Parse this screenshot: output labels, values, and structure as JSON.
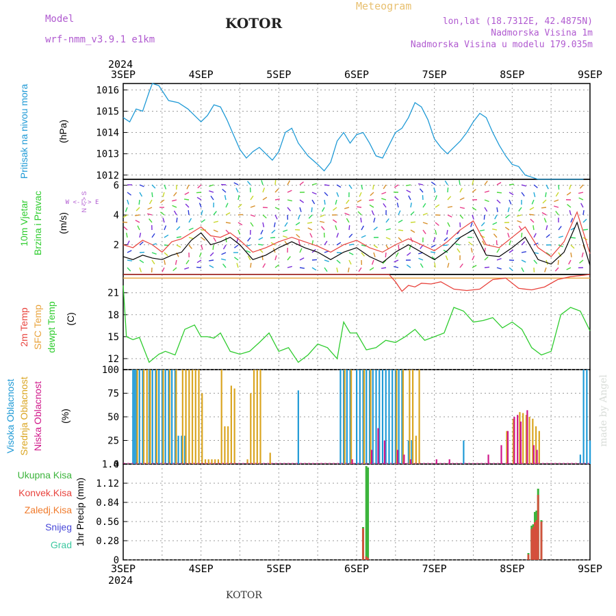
{
  "header": {
    "model_label": "Model",
    "model_name": "wrf-nmm_v3.9.1 e1km",
    "title": "KOTOR",
    "meteogram": "Meteogram",
    "lonlat": "lon,lat (18.7312E, 42.4875N)",
    "elevation": "Nadmorska Visina 1m",
    "model_elevation": "Nadmorska Visina u modelu 179.035m"
  },
  "footer": {
    "station": "KOTOR",
    "credit": "made by Angel"
  },
  "colors": {
    "pressure": "#1f9ad6",
    "temp2m": "#e8423c",
    "sfc_temp": "#e8a23a",
    "dewpt": "#2ecc2e",
    "high_cloud": "#1f9ad6",
    "mid_cloud": "#daa520",
    "low_cloud": "#d0178a",
    "total_precip": "#3cb43c",
    "conv_precip": "#e8423c",
    "freezing_precip": "#f07a2a",
    "snow": "#4646d8",
    "hail": "#3cc8a0"
  },
  "chart_data": [
    {
      "type": "line",
      "panel": "pressure",
      "ylabel_left": "Pritisak na nivou mora",
      "unit": "(hPa)",
      "year_top": "2024",
      "x_ticks": [
        "3SEP",
        "4SEP",
        "5SEP",
        "6SEP",
        "7SEP",
        "8SEP",
        "9SEP"
      ],
      "xlim": [
        "2024-09-03T00",
        "2024-09-09T00"
      ],
      "ylim": [
        1011.8,
        1016.3
      ],
      "y_ticks": [
        "1012",
        "1013",
        "1014",
        "1015",
        "1016"
      ],
      "series": [
        {
          "name": "",
          "x_hours": [
            0,
            2,
            4,
            6,
            8,
            9,
            11,
            14,
            17,
            20,
            22,
            24,
            26,
            28,
            30,
            32,
            34,
            36,
            38,
            40,
            42,
            44,
            46,
            48,
            50,
            52,
            54,
            57,
            60,
            62,
            64,
            66,
            68,
            70,
            72,
            74,
            76,
            78,
            80,
            82,
            84,
            86,
            88,
            90,
            92,
            94,
            96,
            98,
            100,
            102,
            104,
            106,
            108,
            110,
            112,
            114,
            116,
            118,
            120,
            122,
            124,
            126,
            128,
            130,
            132,
            134,
            136,
            138,
            140,
            142
          ],
          "values": [
            1014.7,
            1014.5,
            1015.1,
            1015.0,
            1015.9,
            1016.3,
            1016.2,
            1015.5,
            1015.4,
            1015.1,
            1014.8,
            1014.5,
            1014.8,
            1015.3,
            1015.2,
            1014.6,
            1013.9,
            1013.2,
            1012.8,
            1013.1,
            1013.3,
            1013.0,
            1012.7,
            1013.1,
            1014.0,
            1014.2,
            1013.5,
            1012.9,
            1012.5,
            1012.2,
            1012.6,
            1013.6,
            1014.0,
            1013.5,
            1013.9,
            1014.0,
            1013.5,
            1012.9,
            1012.8,
            1013.4,
            1014.0,
            1014.2,
            1014.7,
            1015.4,
            1015.2,
            1014.6,
            1013.7,
            1013.3,
            1013.0,
            1013.3,
            1013.6,
            1014.0,
            1014.5,
            1014.9,
            1014.7,
            1014.0,
            1013.4,
            1012.9,
            1012.5,
            1012.4,
            1012.0,
            1011.9,
            1011.8,
            1011.8,
            1011.8,
            1011.8,
            1011.8,
            1011.8,
            1011.8,
            1011.8
          ]
        }
      ]
    },
    {
      "type": "line",
      "panel": "wind",
      "ylabel_left": "10m Vjetar",
      "ylabel_left2": "Brzina i Pravac",
      "unit": "(m/s)",
      "compass_ns": "N <-> S",
      "compass_we": "W <-|-> E",
      "ylim": [
        0,
        6.4
      ],
      "y_ticks": [
        "2",
        "4",
        "6"
      ],
      "series": [
        {
          "name": "",
          "x_hours": [
            0,
            3,
            6,
            9,
            12,
            15,
            18,
            21,
            24,
            27,
            30,
            33,
            36,
            40,
            44,
            48,
            52,
            56,
            60,
            64,
            68,
            72,
            76,
            80,
            84,
            88,
            92,
            96,
            100,
            104,
            108,
            112,
            116,
            120,
            124,
            128,
            132,
            136,
            140,
            144
          ],
          "values": [
            1.2,
            1.0,
            1.3,
            1.1,
            1.0,
            1.3,
            1.5,
            2.3,
            2.8,
            2.0,
            2.2,
            2.5,
            2.0,
            1.0,
            1.3,
            1.8,
            2.2,
            1.8,
            1.5,
            1.0,
            1.5,
            1.8,
            1.2,
            0.8,
            1.5,
            2.0,
            1.5,
            1.0,
            1.6,
            2.5,
            3.0,
            1.3,
            1.2,
            1.8,
            2.5,
            1.0,
            0.7,
            1.5,
            3.5,
            0.6
          ]
        },
        {
          "name": "",
          "x_hours": [
            0,
            3,
            6,
            9,
            12,
            15,
            18,
            21,
            24,
            27,
            30,
            33,
            36,
            40,
            44,
            48,
            52,
            56,
            60,
            64,
            68,
            72,
            76,
            80,
            84,
            88,
            92,
            96,
            100,
            104,
            108,
            112,
            116,
            120,
            124,
            128,
            132,
            136,
            140,
            144
          ],
          "values": [
            2.0,
            1.8,
            2.3,
            2.0,
            1.5,
            2.2,
            2.4,
            2.8,
            3.2,
            2.6,
            2.5,
            2.8,
            2.3,
            1.5,
            1.8,
            2.2,
            2.5,
            2.2,
            1.9,
            1.5,
            2.0,
            2.3,
            1.8,
            1.5,
            2.0,
            2.4,
            2.0,
            1.6,
            2.2,
            3.0,
            3.6,
            2.0,
            1.8,
            2.5,
            3.2,
            1.8,
            1.2,
            2.2,
            4.2,
            1.4
          ]
        }
      ]
    },
    {
      "type": "line",
      "panel": "temperature",
      "ylabel_left": "2m Temp",
      "ylabel_left2": "SFC Temp",
      "ylabel_left3": "dewpt Temp",
      "unit": "(C)",
      "ylim": [
        10.5,
        23.5
      ],
      "y_ticks": [
        "12",
        "15",
        "18",
        "21"
      ],
      "series": [
        {
          "name": "",
          "x_hours": [
            0,
            144
          ],
          "values": [
            23.0,
            23.0
          ]
        },
        {
          "name": "",
          "x_hours": [
            0,
            82,
            84,
            86,
            88,
            90,
            92,
            95,
            98,
            102,
            106,
            110,
            114,
            118,
            122,
            126,
            130,
            134,
            138,
            142,
            144
          ],
          "values": [
            23.5,
            23.5,
            22.5,
            21.2,
            22.0,
            21.8,
            22.3,
            22.2,
            22.5,
            21.5,
            21.3,
            21.5,
            22.8,
            23.0,
            21.6,
            21.4,
            21.8,
            22.8,
            23.2,
            23.4,
            23.5
          ]
        },
        {
          "name": "",
          "x_hours": [
            0,
            1,
            3,
            5,
            8,
            11,
            13,
            16,
            19,
            22,
            24,
            26,
            28,
            30,
            33,
            36,
            39,
            42,
            45,
            48,
            51,
            54,
            57,
            60,
            63,
            66,
            68,
            70,
            72,
            75,
            78,
            81,
            84,
            87,
            90,
            93,
            96,
            99,
            102,
            105,
            108,
            111,
            114,
            117,
            120,
            123,
            126,
            129,
            132,
            135,
            138,
            141,
            144
          ],
          "values": [
            22.0,
            15.0,
            14.6,
            14.9,
            11.5,
            12.6,
            13.0,
            12.5,
            16.0,
            16.6,
            15.0,
            15.0,
            14.8,
            15.5,
            13.0,
            12.6,
            13.0,
            14.2,
            15.5,
            13.0,
            13.5,
            11.5,
            12.5,
            14.0,
            13.5,
            12.0,
            17.0,
            15.5,
            15.5,
            13.2,
            13.5,
            14.5,
            14.2,
            15.0,
            16.0,
            14.5,
            15.0,
            15.5,
            19.0,
            18.5,
            17.0,
            17.2,
            17.6,
            16.2,
            17.0,
            16.0,
            13.5,
            12.5,
            13.0,
            18.0,
            19.0,
            18.5,
            15.8
          ]
        }
      ]
    },
    {
      "type": "bar",
      "panel": "cloud_cover",
      "ylabel_left": "Visoka Oblacnost",
      "ylabel_left2": "Srednja Oblacnost",
      "ylabel_left3": "Niska Oblacnost",
      "unit": "(%)",
      "ylim": [
        0,
        100
      ],
      "y_ticks": [
        "0",
        "25",
        "50",
        "75",
        "100"
      ],
      "series": [
        {
          "name": "",
          "x_hours": [
            3,
            3.5,
            4,
            5,
            6,
            8,
            9,
            10,
            11,
            12,
            13,
            14,
            15,
            16,
            17,
            18,
            19,
            54,
            67,
            68,
            69,
            70,
            72,
            73,
            74,
            75,
            76,
            77,
            78,
            79,
            80,
            81,
            82,
            83,
            84,
            85,
            86,
            88,
            89,
            105,
            141,
            142,
            143,
            144
          ],
          "values": [
            100,
            100,
            100,
            100,
            100,
            100,
            100,
            100,
            100,
            100,
            100,
            100,
            100,
            100,
            30,
            30,
            30,
            78,
            100,
            100,
            100,
            100,
            100,
            100,
            100,
            100,
            100,
            100,
            100,
            100,
            100,
            100,
            100,
            100,
            100,
            100,
            100,
            25,
            25,
            25,
            10,
            100,
            100,
            25
          ]
        },
        {
          "name": "",
          "x_hours": [
            4,
            6,
            7,
            8,
            10,
            12,
            14,
            16,
            18,
            19,
            20,
            21,
            22,
            23,
            24,
            25,
            26,
            27,
            28,
            29,
            30,
            31,
            32,
            33,
            34,
            38,
            39,
            40,
            41,
            42,
            45,
            68,
            70,
            74,
            76,
            84,
            86,
            88,
            89,
            90,
            91,
            118,
            120,
            122,
            123,
            124,
            125,
            126,
            127,
            128
          ],
          "values": [
            100,
            100,
            100,
            100,
            100,
            100,
            100,
            100,
            100,
            100,
            100,
            100,
            100,
            100,
            75,
            5,
            5,
            5,
            5,
            5,
            100,
            40,
            40,
            83,
            80,
            5,
            75,
            100,
            100,
            100,
            12,
            100,
            100,
            100,
            100,
            100,
            100,
            100,
            100,
            30,
            100,
            35,
            48,
            55,
            54,
            52,
            50,
            48,
            40,
            35
          ]
        },
        {
          "name": "",
          "x_hours": [
            70,
            76,
            78,
            80,
            84,
            86,
            88,
            96,
            100,
            112,
            116,
            118,
            120,
            121,
            122,
            124,
            126,
            127
          ],
          "values": [
            5,
            15,
            38,
            25,
            15,
            10,
            5,
            5,
            5,
            10,
            20,
            35,
            50,
            52,
            45,
            57,
            20,
            15
          ]
        }
      ]
    },
    {
      "type": "bar",
      "panel": "precipitation",
      "ylabel_left": "1hr Precip",
      "unit": "(mm)",
      "legend": [
        "Ukupna Kisa",
        "Konvek.Kisa",
        "Zaledj.Kisa",
        "Snijeg",
        "Grad"
      ],
      "year_bottom": "2024",
      "x_ticks": [
        "3SEP",
        "4SEP",
        "5SEP",
        "6SEP",
        "7SEP",
        "8SEP",
        "9SEP"
      ],
      "ylim": [
        0,
        1.4
      ],
      "y_ticks": [
        "0",
        "0.28",
        "0.56",
        "0.84",
        "1.12",
        "1.4"
      ],
      "series": [
        {
          "name": "Ukupna Kisa",
          "x_hours": [
            74,
            75,
            75.5,
            125,
            126,
            126.5,
            127,
            127.5,
            128,
            129
          ],
          "values": [
            0.48,
            1.37,
            1.35,
            0.1,
            0.5,
            0.52,
            0.7,
            0.72,
            1.04,
            0.58
          ]
        },
        {
          "name": "Konvek.Kisa",
          "x_hours": [
            74,
            75,
            75.5,
            125,
            126,
            126.5,
            127,
            127.5,
            128,
            129
          ],
          "values": [
            0.46,
            0.05,
            0.03,
            0.08,
            0.45,
            0.48,
            0.55,
            0.58,
            0.95,
            0.56
          ]
        }
      ]
    }
  ]
}
